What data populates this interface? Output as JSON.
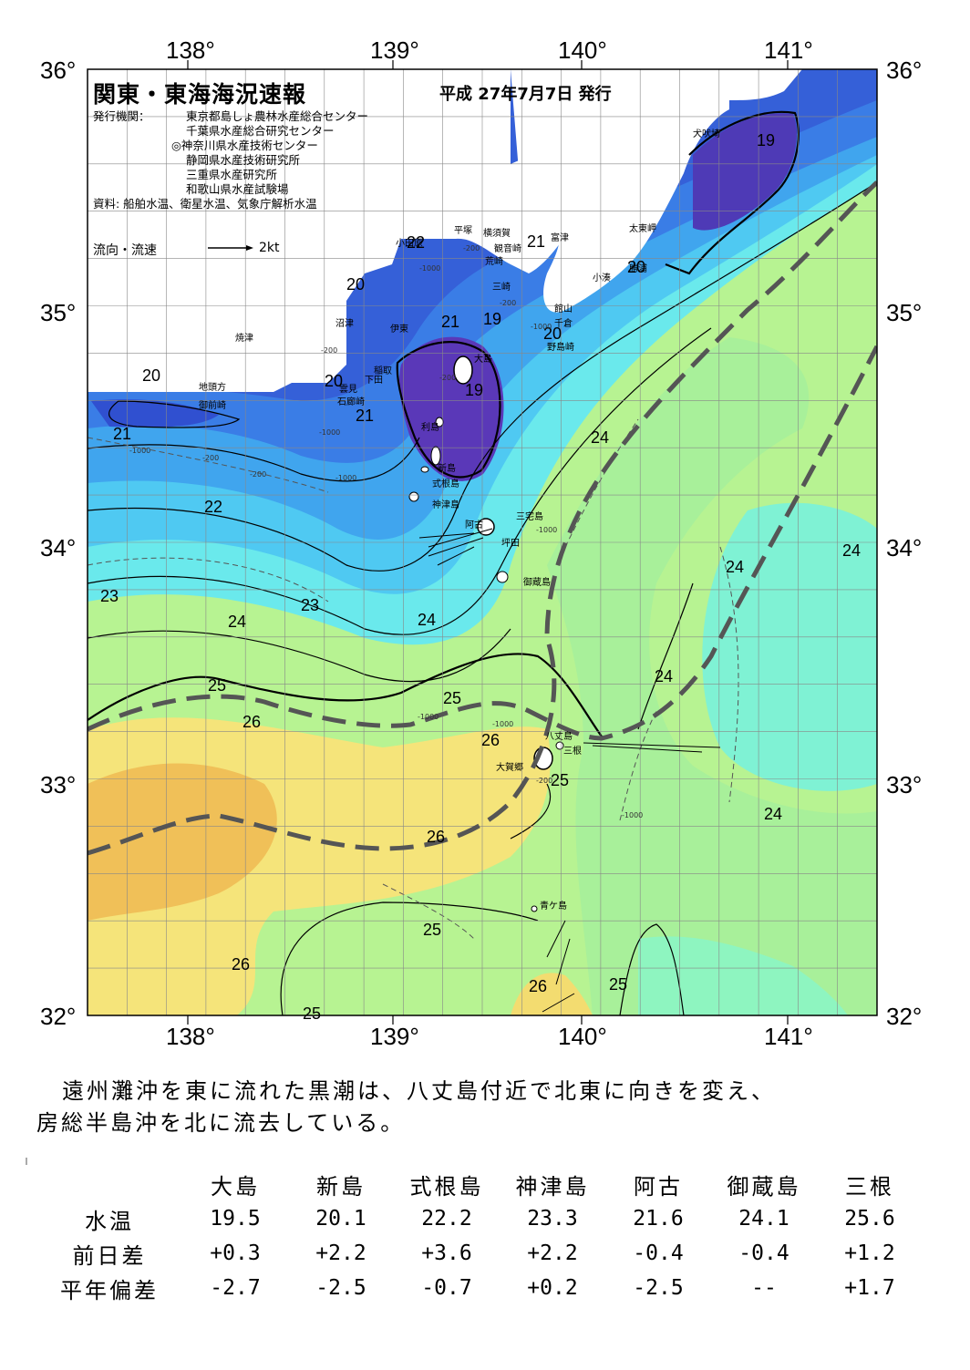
{
  "title": "関東・東海海況速報",
  "issue_date": "平成 27年7月7日 発行",
  "agency_label": "発行機関：",
  "agencies": [
    "東京都島しょ農林水産総合センター",
    "千葉県水産総合研究センター",
    "◎神奈川県水産技術センター",
    "静岡県水産技術研究所",
    "三重県水産研究所",
    "和歌山県水産試験場"
  ],
  "source": "資料: 船舶水温、衛星水温、気象庁解析水温",
  "flow_legend": "流向・流速",
  "flow_unit": "2kt",
  "lon_labels": [
    "138°",
    "139°",
    "140°",
    "141°"
  ],
  "lat_labels": [
    "36°",
    "35°",
    "34°",
    "33°",
    "32°"
  ],
  "place_names": [
    "犬吠埼",
    "太東岬",
    "小湊",
    "勝浦",
    "館山",
    "千倉",
    "野島崎",
    "富津",
    "観音崎",
    "横須賀",
    "荒崎",
    "三崎",
    "平塚",
    "小田原",
    "沼津",
    "伊東",
    "稲取",
    "下田",
    "雲見",
    "石廊崎",
    "焼津",
    "地頭方",
    "御前崎",
    "大島",
    "利島",
    "新島",
    "式根島",
    "神津島",
    "阿古",
    "三宅島",
    "坪田",
    "御蔵島",
    "八丈島",
    "三根",
    "大賀郷",
    "青ケ島"
  ],
  "temp_labels": [
    "19",
    "19",
    "19",
    "20",
    "20",
    "20",
    "20",
    "20",
    "21",
    "21",
    "21",
    "21",
    "22",
    "22",
    "23",
    "23",
    "24",
    "24",
    "24",
    "24",
    "24",
    "24",
    "24",
    "25",
    "25",
    "25",
    "25",
    "25",
    "25",
    "26",
    "26",
    "26",
    "26",
    "26"
  ],
  "depth_labels": [
    "-200",
    "-1000",
    "-200",
    "-1000",
    "-200",
    "-1000",
    "-200",
    "-1000",
    "-1000",
    "-200",
    "-200",
    "-1000",
    "-1000",
    "-1000",
    "-200",
    "-1000"
  ],
  "colors": {
    "t19": "#5a2fb0",
    "t20": "#2f4fd8",
    "t21": "#3a78e8",
    "t22": "#46a8f0",
    "t23": "#5fd0f4",
    "t24": "#78f0e0",
    "t24b": "#8cf5a8",
    "t25": "#bff58a",
    "t26": "#f5e878",
    "t27": "#f2c85a",
    "land": "#ffffff",
    "kuroshio_axis": "#555555"
  },
  "summary": [
    "遠州灘沖を東に流れた黒潮は、八丈島付近で北東に向きを変え、",
    "房総半島沖を北に流去している。"
  ],
  "table": {
    "stations": [
      "大島",
      "新島",
      "式根島",
      "神津島",
      "阿古",
      "御蔵島",
      "三根"
    ],
    "rows": [
      {
        "label": "水温",
        "values": [
          "19.5",
          "20.1",
          "22.2",
          "23.3",
          "21.6",
          "24.1",
          "25.6"
        ]
      },
      {
        "label": "前日差",
        "values": [
          "+0.3",
          "+2.2",
          "+3.6",
          "+2.2",
          "-0.4",
          "-0.4",
          "+1.2"
        ]
      },
      {
        "label": "平年偏差",
        "values": [
          "-2.7",
          "-2.5",
          "-0.7",
          "+0.2",
          "-2.5",
          "--",
          "+1.7"
        ]
      }
    ]
  }
}
